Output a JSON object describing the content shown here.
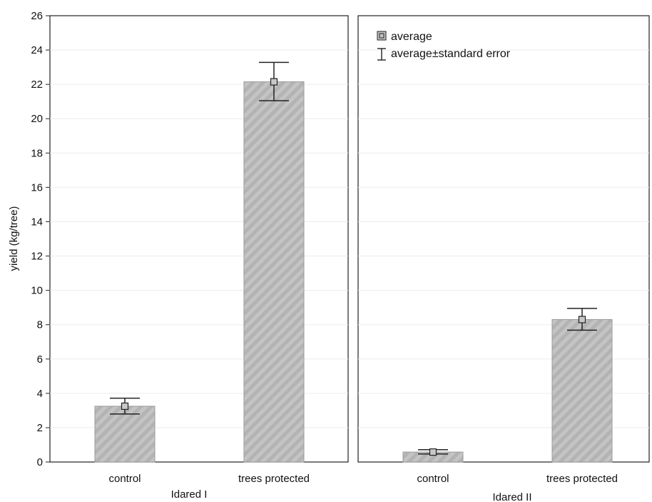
{
  "chart_data": {
    "type": "bar",
    "ylabel": "yield (kg/tree)",
    "ylim": [
      0,
      26
    ],
    "yticks": [
      0,
      2,
      4,
      6,
      8,
      10,
      12,
      14,
      16,
      18,
      20,
      22,
      24,
      26
    ],
    "grid": true,
    "legend": {
      "placement": "top-left of right panel",
      "entries": [
        "average",
        "average±standard error"
      ]
    },
    "panels": [
      {
        "title": "Idared I",
        "categories": [
          "control",
          "trees protected"
        ],
        "values": [
          3.25,
          22.15
        ],
        "error_low": [
          2.8,
          21.05
        ],
        "error_high": [
          3.72,
          23.28
        ]
      },
      {
        "title": "Idared II",
        "categories": [
          "control",
          "trees protected"
        ],
        "values": [
          0.58,
          8.3
        ],
        "error_low": [
          0.47,
          7.68
        ],
        "error_high": [
          0.72,
          8.95
        ]
      }
    ]
  }
}
